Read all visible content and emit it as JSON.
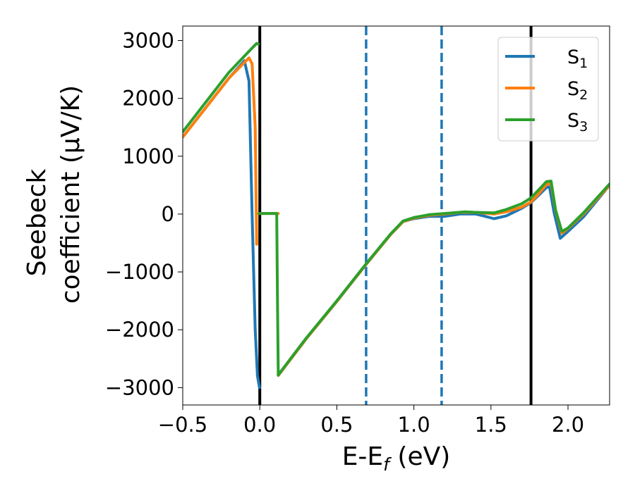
{
  "chart_data": {
    "type": "line",
    "xlabel": "E-E_f (eV)",
    "ylabel_line1": "Seebeck",
    "ylabel_line2": "coefficient  (μV/K)",
    "xlim": [
      -0.5,
      2.27
    ],
    "ylim": [
      -3300,
      3250
    ],
    "xticks": [
      -0.5,
      0.0,
      0.5,
      1.0,
      1.5,
      2.0
    ],
    "xtick_labels": [
      "−0.5",
      "0.0",
      "0.5",
      "1.0",
      "1.5",
      "2.0"
    ],
    "yticks": [
      3000,
      2000,
      1000,
      0,
      -1000,
      -2000,
      -3000
    ],
    "ytick_labels": [
      "3000",
      "2000",
      "1000",
      "0",
      "−1000",
      "−2000",
      "−3000"
    ],
    "grid": false,
    "legend_position": "top-right",
    "vertical_lines": [
      {
        "x": 0.0,
        "style": "solid",
        "color": "#000000"
      },
      {
        "x": 0.69,
        "style": "dashed",
        "color": "#1f77b4"
      },
      {
        "x": 1.18,
        "style": "dashed",
        "color": "#1f77b4"
      },
      {
        "x": 1.76,
        "style": "solid",
        "color": "#000000"
      }
    ],
    "series": [
      {
        "name": "S1",
        "legend_base": "S",
        "legend_sub": "1",
        "color": "#1f77b4",
        "segments": [
          {
            "x": [
              -0.5,
              -0.2,
              -0.1,
              -0.07,
              -0.05,
              -0.03,
              -0.015,
              -0.002
            ],
            "y": [
              1330,
              2350,
              2650,
              2300,
              0,
              -2000,
              -2800,
              -3000
            ]
          },
          {
            "x": [
              0.12,
              0.3,
              0.5,
              0.69,
              0.85,
              0.93,
              1.0,
              1.1,
              1.2,
              1.3,
              1.4,
              1.45,
              1.52,
              1.6,
              1.7,
              1.76,
              1.8,
              1.86,
              1.88,
              1.91,
              1.95,
              2.0,
              2.1,
              2.27
            ],
            "y": [
              -2790,
              -2160,
              -1510,
              -870,
              -350,
              -130,
              -80,
              -40,
              -40,
              0,
              0,
              -30,
              -80,
              -30,
              100,
              200,
              300,
              460,
              470,
              20,
              -420,
              -300,
              -50,
              500
            ]
          }
        ]
      },
      {
        "name": "S2",
        "legend_base": "S",
        "legend_sub": "2",
        "color": "#ff7f0e",
        "segments": [
          {
            "x": [
              -0.5,
              -0.2,
              -0.07,
              -0.05,
              -0.03,
              -0.02
            ],
            "y": [
              1330,
              2350,
              2700,
              2600,
              1500,
              -520
            ]
          },
          {
            "x": [
              -0.005,
              0.12
            ],
            "y": [
              10,
              10
            ]
          },
          {
            "x": [
              0.12,
              0.3,
              0.5,
              0.69,
              0.85,
              0.93,
              1.0,
              1.1,
              1.2,
              1.3,
              1.4,
              1.52,
              1.6,
              1.7,
              1.76,
              1.8,
              1.86,
              1.89,
              1.92,
              1.96,
              2.0,
              2.1,
              2.27
            ],
            "y": [
              -2790,
              -2160,
              -1510,
              -870,
              -350,
              -130,
              -70,
              -20,
              0,
              30,
              30,
              0,
              40,
              120,
              210,
              320,
              510,
              530,
              50,
              -330,
              -250,
              0,
              500
            ]
          }
        ]
      },
      {
        "name": "S3",
        "legend_base": "S",
        "legend_sub": "3",
        "color": "#2ca02c",
        "segments": [
          {
            "x": [
              -0.5,
              -0.2,
              -0.05,
              -0.02,
              -0.01
            ],
            "y": [
              1420,
              2450,
              2870,
              2950,
              2940
            ]
          },
          {
            "x": [
              -0.005,
              0.11,
              0.115,
              0.12
            ],
            "y": [
              10,
              10,
              -1500,
              -2780
            ]
          },
          {
            "x": [
              0.12,
              0.3,
              0.5,
              0.69,
              0.85,
              0.93,
              1.0,
              1.1,
              1.2,
              1.33,
              1.4,
              1.52,
              1.6,
              1.7,
              1.76,
              1.8,
              1.86,
              1.89,
              1.92,
              1.96,
              2.0,
              2.1,
              2.27
            ],
            "y": [
              -2780,
              -2150,
              -1500,
              -860,
              -340,
              -120,
              -60,
              -10,
              10,
              40,
              30,
              20,
              80,
              180,
              280,
              390,
              560,
              570,
              60,
              -300,
              -240,
              20,
              520
            ]
          }
        ]
      }
    ]
  }
}
